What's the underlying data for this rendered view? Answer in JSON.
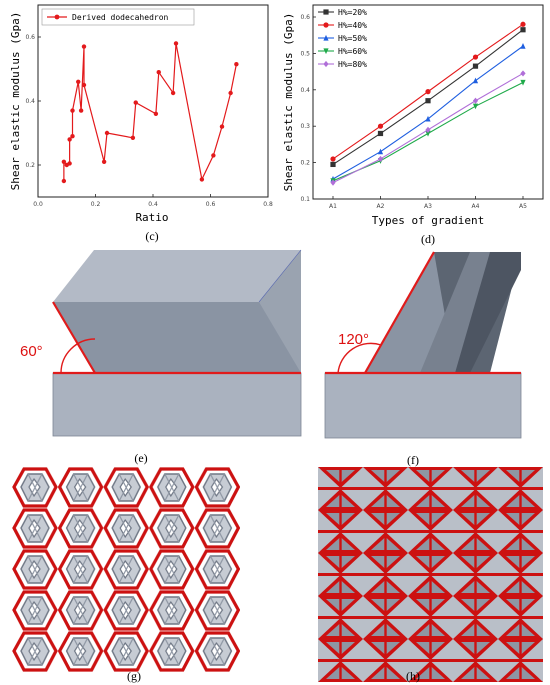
{
  "colors": {
    "red": "#e31a1c",
    "black": "#333333",
    "blue": "#1f5fe0",
    "green": "#1faa4a",
    "purple": "#b06fd8",
    "block_top": "#aab2bf",
    "block_front": "#8a94a3",
    "block_side": "#b8bfca",
    "lattice_red": "#cc1111",
    "lattice_grey": "#9ea6b3"
  },
  "captions": {
    "c": "(c)",
    "d": "(d)",
    "e": "(e)",
    "f": "(f)",
    "g": "(g)",
    "h": "(h)"
  },
  "angles": {
    "e": "60°",
    "f": "120°"
  },
  "chart_data": [
    {
      "type": "line",
      "panel": "c",
      "xlabel": "Ratio",
      "ylabel": "Shear elastic modulus (Gpa)",
      "xlim": [
        0.0,
        0.8
      ],
      "ylim": [
        0.1,
        0.7
      ],
      "xticks": [
        "0.0",
        "0.2",
        "0.4",
        "0.6",
        "0.8"
      ],
      "yticks": [
        "0.2",
        "0.4",
        "0.6"
      ],
      "legend_position": "top-left",
      "series": [
        {
          "name": "Derived dodecahedron",
          "color": "#e31a1c",
          "x": [
            0.09,
            0.09,
            0.1,
            0.11,
            0.11,
            0.12,
            0.12,
            0.14,
            0.15,
            0.16,
            0.16,
            0.23,
            0.24,
            0.33,
            0.34,
            0.41,
            0.42,
            0.47,
            0.48,
            0.57,
            0.61,
            0.64,
            0.67,
            0.69
          ],
          "y": [
            0.15,
            0.21,
            0.2,
            0.205,
            0.28,
            0.29,
            0.37,
            0.46,
            0.37,
            0.57,
            0.45,
            0.21,
            0.3,
            0.285,
            0.395,
            0.36,
            0.49,
            0.425,
            0.58,
            0.155,
            0.23,
            0.32,
            0.425,
            0.515
          ]
        }
      ]
    },
    {
      "type": "line",
      "panel": "d",
      "xlabel": "Types of gradient",
      "ylabel": "Shear elastic modulus (Gpa)",
      "categories": [
        "A1",
        "A2",
        "A3",
        "A4",
        "A5"
      ],
      "ylim": [
        0.1,
        0.6
      ],
      "yticks": [
        "0.1",
        "0.2",
        "0.3",
        "0.4",
        "0.5",
        "0.6"
      ],
      "legend_position": "top-left",
      "series": [
        {
          "name": "H%=20%",
          "color": "#333333",
          "marker": "square",
          "values": [
            0.195,
            0.28,
            0.37,
            0.465,
            0.565
          ]
        },
        {
          "name": "H%=40%",
          "color": "#e31a1c",
          "marker": "circle",
          "values": [
            0.21,
            0.3,
            0.395,
            0.49,
            0.58
          ]
        },
        {
          "name": "H%=50%",
          "color": "#1f5fe0",
          "marker": "triangle",
          "values": [
            0.155,
            0.23,
            0.32,
            0.425,
            0.52
          ]
        },
        {
          "name": "H%=60%",
          "color": "#1faa4a",
          "marker": "triangle-down",
          "values": [
            0.15,
            0.205,
            0.28,
            0.355,
            0.42
          ]
        },
        {
          "name": "H%=80%",
          "color": "#b06fd8",
          "marker": "diamond",
          "values": [
            0.145,
            0.21,
            0.29,
            0.37,
            0.445
          ]
        }
      ]
    }
  ]
}
